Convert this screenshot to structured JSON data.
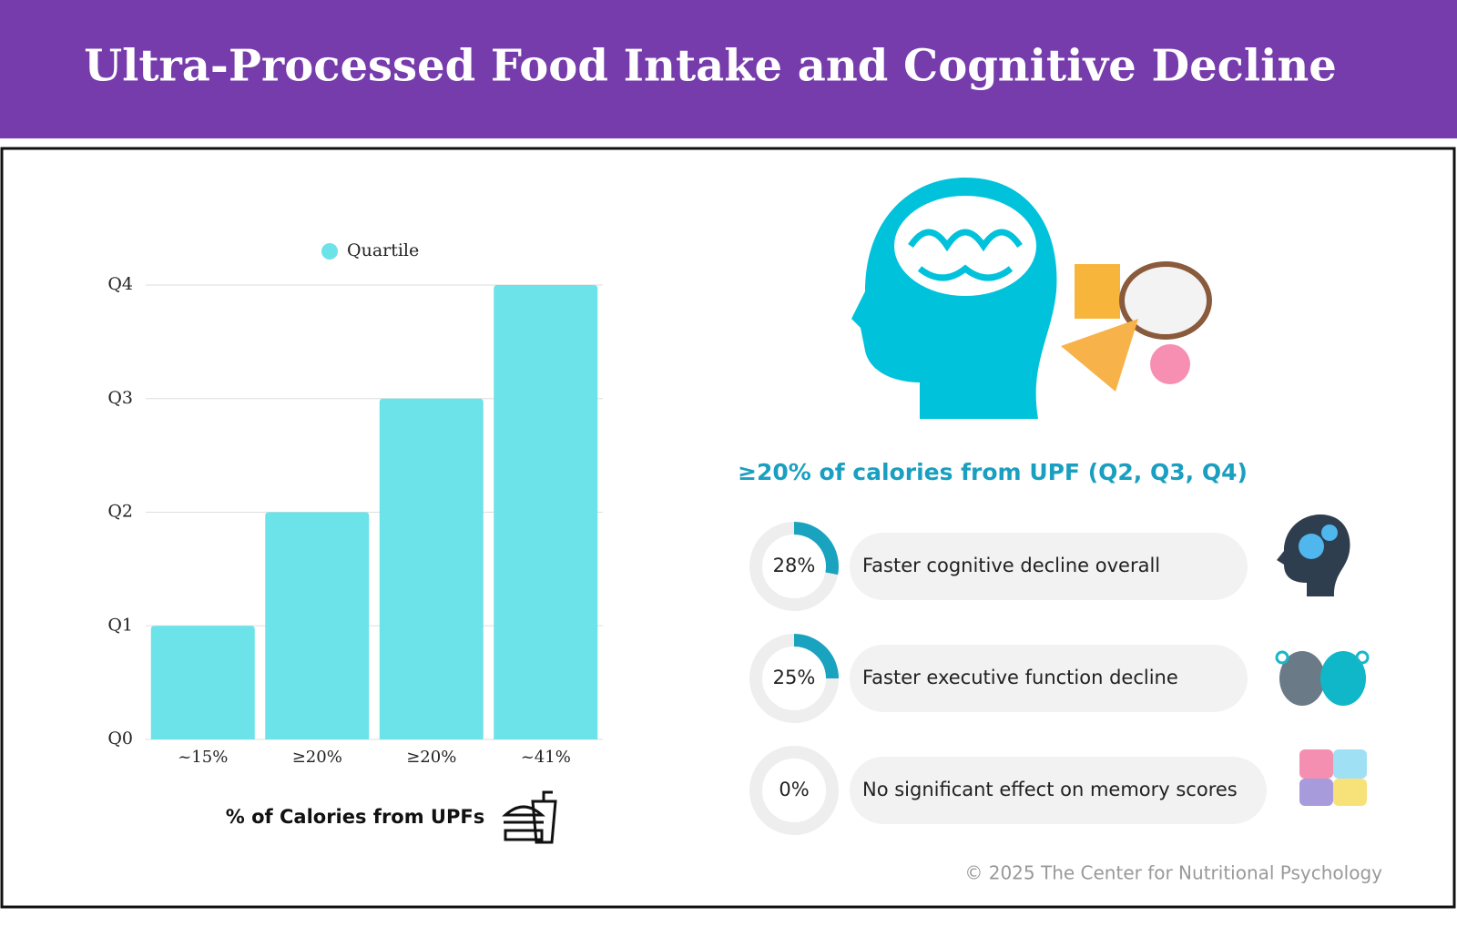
{
  "title": "Ultra-Processed Food Intake and Cognitive Decline",
  "chart_data": {
    "type": "bar",
    "categories": [
      "~15%",
      "≥20%",
      "≥20%",
      "~41%"
    ],
    "series": [
      {
        "name": "Quartile",
        "color": "#6ce3e8",
        "values": [
          1,
          2,
          3,
          4
        ]
      }
    ],
    "ylim": [
      0,
      4
    ],
    "yticks": [
      {
        "value": 0,
        "label": "Q0"
      },
      {
        "value": 1,
        "label": "Q1"
      },
      {
        "value": 2,
        "label": "Q2"
      },
      {
        "value": 3,
        "label": "Q3"
      },
      {
        "value": 4,
        "label": "Q4"
      }
    ],
    "xlabel": "% of Calories from UPFs",
    "grid": true,
    "legend": "top"
  },
  "stats": {
    "heading": "≥20% of calories from UPF (Q2, Q3, Q4)",
    "values": [
      28,
      25,
      0
    ],
    "value_labels": [
      "28%",
      "25%",
      "0%"
    ],
    "labels": [
      "Faster cognitive decline overall",
      "Faster executive function decline",
      "No significant effect on memory scores"
    ],
    "color": "#1aa3bf"
  },
  "footer": "© 2025 The Center for Nutritional Psychology"
}
